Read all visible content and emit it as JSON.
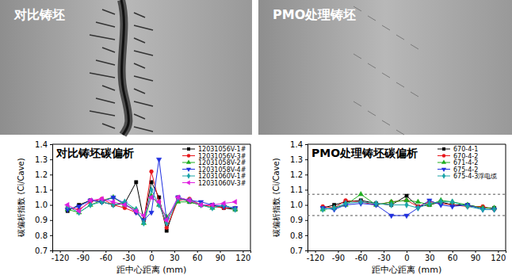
{
  "photos": [
    {
      "label": "对比铸坯"
    },
    {
      "label": "PMO处理铸坯"
    }
  ],
  "chart_data": [
    {
      "type": "line",
      "title": "对比铸坯碳偏析",
      "x_label": "距中心距离 (mm)",
      "y_label": "碳偏析指数 (Ci/Cave)",
      "x": [
        -110,
        -95,
        -80,
        -65,
        -50,
        -35,
        -20,
        -10,
        0,
        10,
        20,
        35,
        50,
        65,
        80,
        95,
        110
      ],
      "xlim": [
        -130,
        130
      ],
      "xticks": [
        -120,
        -90,
        -60,
        -30,
        0,
        30,
        60,
        90,
        120
      ],
      "ylim": [
        0.7,
        1.4
      ],
      "yticks": [
        0.7,
        0.8,
        0.9,
        {
          "value": 1,
          "label": "1.0"
        },
        1.1,
        1.2,
        1.3,
        1.4
      ],
      "legend": "top-right",
      "series": [
        {
          "name": "12031056V-1#",
          "color": "#000000",
          "marker": "square",
          "values": [
            0.96,
            1.0,
            1.03,
            1.02,
            1.0,
            1.01,
            1.15,
            0.9,
            1.15,
            1.05,
            0.83,
            1.05,
            1.02,
            1.0,
            1.0,
            0.98,
            0.97
          ]
        },
        {
          "name": "12031056V-3#",
          "color": "#e8161b",
          "marker": "circle",
          "values": [
            0.98,
            0.97,
            1.02,
            1.04,
            1.0,
            0.98,
            0.95,
            0.9,
            1.22,
            1.02,
            0.85,
            1.03,
            1.04,
            1.0,
            0.99,
            0.98,
            0.98
          ]
        },
        {
          "name": "12031058V-2#",
          "color": "#1fae1f",
          "marker": "triangle-up",
          "values": [
            0.97,
            0.95,
            1.0,
            1.03,
            1.05,
            1.0,
            0.97,
            0.88,
            1.06,
            1.0,
            0.92,
            1.02,
            1.02,
            1.0,
            0.98,
            1.0,
            0.97
          ]
        },
        {
          "name": "12031058V-4#",
          "color": "#1f2fe0",
          "marker": "triangle-down",
          "values": [
            0.97,
            0.99,
            1.03,
            1.02,
            1.05,
            1.01,
            0.95,
            0.9,
            0.95,
            1.3,
            0.9,
            1.05,
            1.03,
            1.02,
            1.0,
            0.99,
            0.98
          ]
        },
        {
          "name": "12031060V-1#",
          "color": "#1ba3a8",
          "marker": "diamond",
          "values": [
            0.99,
            0.95,
            1.0,
            1.02,
            1.0,
            1.02,
            0.97,
            0.88,
            1.1,
            1.0,
            0.88,
            1.04,
            1.03,
            1.0,
            0.98,
            1.0,
            0.97
          ]
        },
        {
          "name": "12031060V-3#",
          "color": "#e01ee0",
          "marker": "triangle-left",
          "values": [
            1.0,
            0.96,
            1.03,
            1.04,
            1.02,
            1.0,
            0.96,
            0.93,
            1.05,
            1.02,
            0.9,
            1.05,
            1.03,
            1.0,
            1.0,
            1.01,
            1.02
          ]
        }
      ]
    },
    {
      "type": "line",
      "title": "PMO处理铸坯碳偏析",
      "x_label": "距中心距离 (mm)",
      "y_label": "碳偏析指数 (Ci/Cave)",
      "x": [
        -110,
        -95,
        -80,
        -60,
        -40,
        -20,
        0,
        15,
        30,
        45,
        60,
        80,
        100,
        115
      ],
      "xlim": [
        -130,
        130
      ],
      "xticks": [
        -120,
        -90,
        -60,
        -30,
        0,
        30,
        60,
        90,
        120
      ],
      "ylim": [
        0.7,
        1.4
      ],
      "yticks": [
        0.7,
        0.8,
        0.9,
        {
          "value": 1,
          "label": "1.0"
        },
        1.1,
        1.2,
        1.3,
        1.4
      ],
      "legend": "top-right",
      "reference_lines": [
        1.07,
        0.93
      ],
      "series": [
        {
          "name": "670-4-1",
          "color": "#000000",
          "marker": "square",
          "values": [
            0.98,
            1.0,
            1.02,
            1.03,
            1.01,
            1.0,
            1.06,
            0.99,
            1.0,
            1.02,
            1.0,
            1.0,
            0.98,
            0.98
          ]
        },
        {
          "name": "670-4-2",
          "color": "#e8161b",
          "marker": "circle",
          "values": [
            0.99,
            0.98,
            1.03,
            1.02,
            1.0,
            1.02,
            1.03,
            0.99,
            1.02,
            1.01,
            1.0,
            0.99,
            0.99,
            0.97
          ]
        },
        {
          "name": "671-4-2",
          "color": "#1fae1f",
          "marker": "triangle-up",
          "values": [
            0.97,
            0.98,
            1.0,
            1.07,
            1.0,
            1.02,
            1.03,
            1.02,
            1.0,
            1.03,
            1.02,
            1.0,
            0.98,
            0.98
          ]
        },
        {
          "name": "675-4-2",
          "color": "#1f2fe0",
          "marker": "triangle-down",
          "values": [
            0.98,
            0.97,
            1.0,
            1.01,
            1.0,
            0.93,
            0.93,
            0.98,
            1.03,
            1.0,
            0.99,
            1.0,
            0.97,
            0.97
          ]
        },
        {
          "name": "675-4-3浮电缆",
          "color": "#1ba3a8",
          "marker": "diamond",
          "values": [
            0.97,
            0.98,
            1.01,
            1.02,
            1.01,
            1.0,
            1.0,
            0.98,
            1.01,
            1.02,
            1.02,
            0.99,
            0.97,
            0.97
          ]
        }
      ]
    }
  ]
}
